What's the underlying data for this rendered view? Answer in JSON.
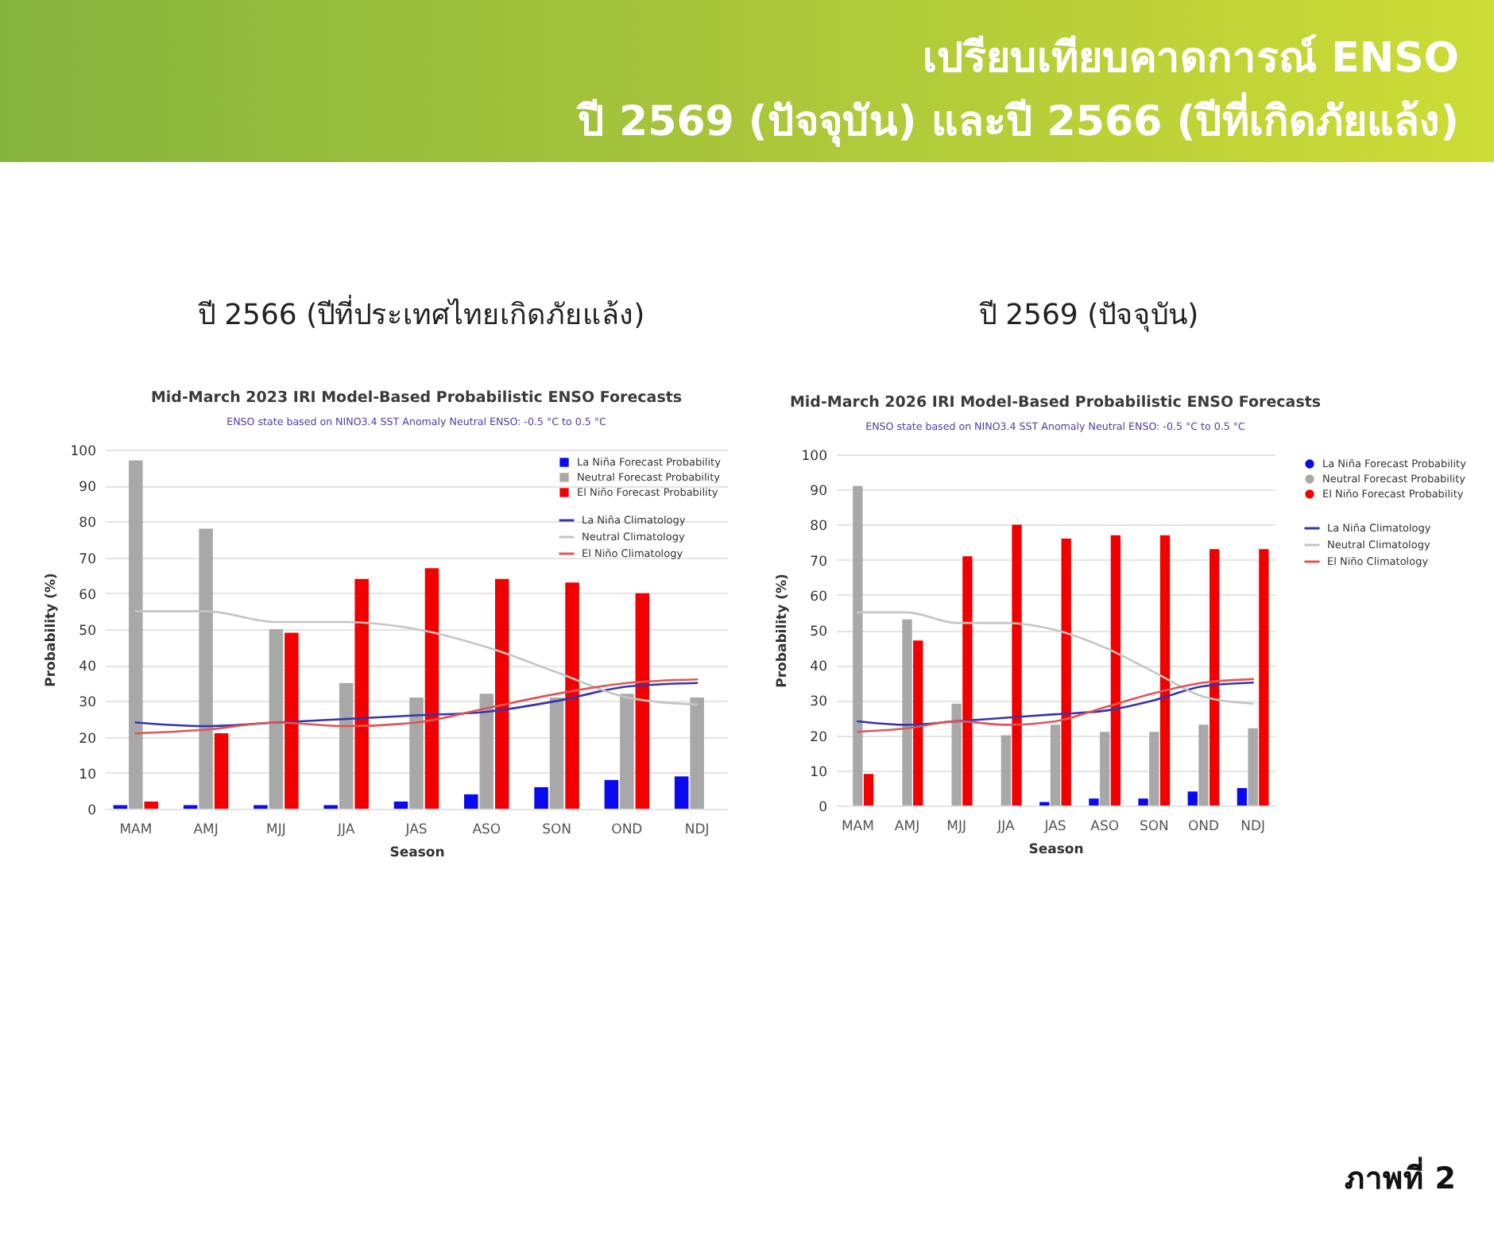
{
  "chart_data": [
    {
      "type": "other",
      "title": "เปรียบเทียบคาดการณ์ ENSO",
      "subtitle": "ปี 2569 (ปัจจุบัน) และปี 2566 (ปีที่เกิดภัยแล้ง)",
      "annotations": [
        "ภาพที่ 2"
      ]
    },
    {
      "type": "bar",
      "title": "Mid-March 2023 IRI Model-Based Probabilistic ENSO Forecasts",
      "subtitle": "ENSO state based on NINO3.4 SST Anomaly Neutral ENSO: -0.5 °C to 0.5 °C",
      "annotations": [
        "ปี 2566 (ปีที่ประเทศไทยเกิดภัยแล้ง)"
      ],
      "xlabel": "Season",
      "ylabel": "Probability (%)",
      "categories": [
        "MAM",
        "AMJ",
        "MJJ",
        "JJA",
        "JAS",
        "ASO",
        "SON",
        "OND",
        "NDJ"
      ],
      "series": [
        {
          "name": "La Niña Forecast Probability",
          "color": "#0a0af0",
          "values": [
            1,
            1,
            1,
            1,
            2,
            4,
            6,
            8,
            9
          ]
        },
        {
          "name": "Neutral Forecast Probability",
          "color": "#a8a8a8",
          "values": [
            97,
            78,
            50,
            35,
            31,
            32,
            31,
            32,
            31
          ]
        },
        {
          "name": "El Niño Forecast Probability",
          "color": "#f20000",
          "values": [
            2,
            21,
            49,
            64,
            67,
            64,
            63,
            60,
            null
          ]
        },
        {
          "name": "La Niña Climatology",
          "type": "line",
          "color": "#3434b0",
          "values": [
            24,
            23,
            24,
            25,
            26,
            27,
            30,
            34,
            35
          ]
        },
        {
          "name": "Neutral Climatology",
          "type": "line",
          "color": "#c4c4c4",
          "values": [
            55,
            55,
            52,
            52,
            50,
            45,
            38,
            31,
            29
          ]
        },
        {
          "name": "El Niño Climatology",
          "type": "line",
          "color": "#e05555",
          "values": [
            21,
            22,
            24,
            23,
            24,
            28,
            32,
            35,
            36
          ]
        }
      ],
      "ylim": [
        0,
        100
      ],
      "yticks": [
        0,
        10,
        20,
        30,
        40,
        50,
        60,
        70,
        80,
        90,
        100
      ],
      "grid": "y",
      "legend": "top right"
    },
    {
      "type": "bar",
      "title": "Mid-March 2026 IRI Model-Based Probabilistic ENSO Forecasts",
      "subtitle": "ENSO state based on NINO3.4 SST Anomaly Neutral ENSO: -0.5 °C to 0.5 °C",
      "annotations": [
        "ปี 2569 (ปัจจุบัน)"
      ],
      "xlabel": "Season",
      "ylabel": "Probability (%)",
      "categories": [
        "MAM",
        "AMJ",
        "MJJ",
        "JJA",
        "JAS",
        "ASO",
        "SON",
        "OND",
        "NDJ"
      ],
      "series": [
        {
          "name": "La Niña Forecast Probability",
          "color": "#0a0af0",
          "values": [
            0,
            0,
            0,
            0,
            1,
            2,
            2,
            4,
            5
          ]
        },
        {
          "name": "Neutral Forecast Probability",
          "color": "#a8a8a8",
          "values": [
            91,
            53,
            29,
            20,
            23,
            21,
            21,
            23,
            22
          ]
        },
        {
          "name": "El Niño Forecast Probability",
          "color": "#f20000",
          "values": [
            9,
            47,
            71,
            80,
            76,
            77,
            77,
            73,
            73
          ]
        },
        {
          "name": "La Niña Climatology",
          "type": "line",
          "color": "#3434b0",
          "values": [
            24,
            23,
            24,
            25,
            26,
            27,
            30,
            34,
            35
          ]
        },
        {
          "name": "Neutral Climatology",
          "type": "line",
          "color": "#c4c4c4",
          "values": [
            55,
            55,
            52,
            52,
            50,
            45,
            38,
            31,
            29
          ]
        },
        {
          "name": "El Niño Climatology",
          "type": "line",
          "color": "#e05555",
          "values": [
            21,
            22,
            24,
            23,
            24,
            28,
            32,
            35,
            36
          ]
        }
      ],
      "ylim": [
        0,
        100
      ],
      "yticks": [
        0,
        10,
        20,
        30,
        40,
        50,
        60,
        70,
        80,
        90,
        100
      ],
      "grid": "y",
      "legend": "right"
    }
  ]
}
